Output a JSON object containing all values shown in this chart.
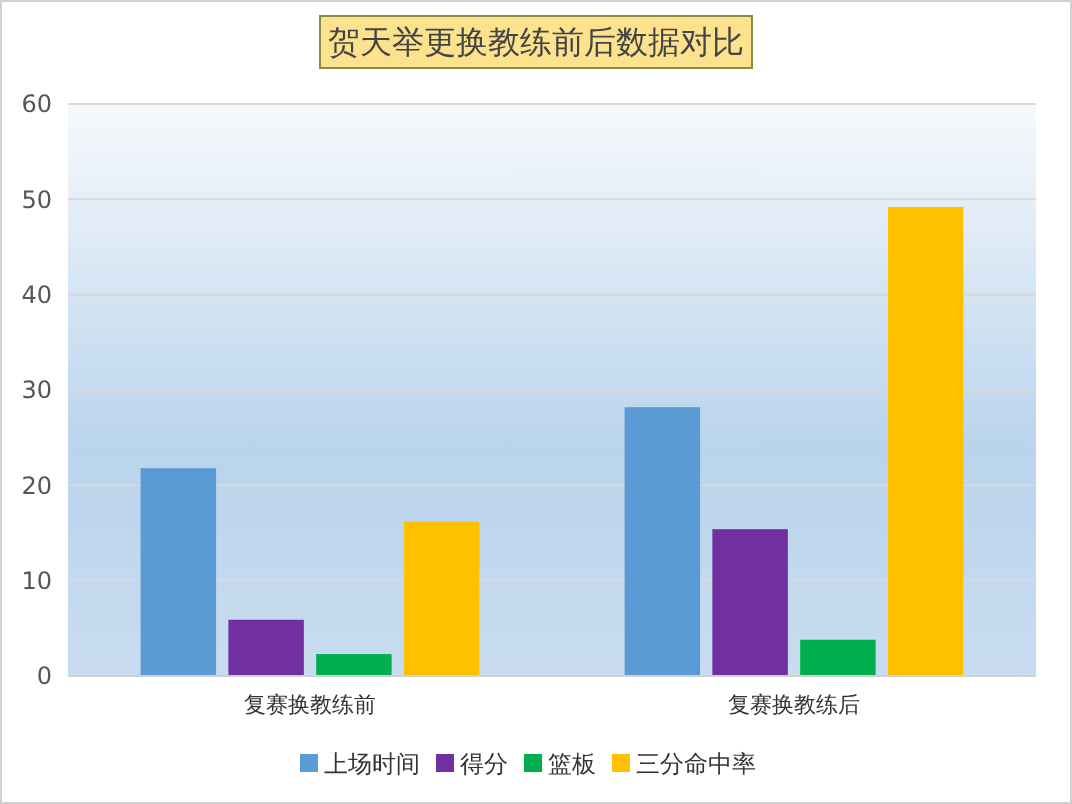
{
  "chart_data": {
    "type": "bar",
    "title": "贺天举更换教练前后数据对比",
    "categories": [
      "复赛换教练前",
      "复赛换教练后"
    ],
    "series": [
      {
        "name": "上场时间",
        "color": "#5b9bd5",
        "values": [
          21.8,
          28.2
        ]
      },
      {
        "name": "得分",
        "color": "#7030a0",
        "values": [
          5.9,
          15.4
        ]
      },
      {
        "name": "篮板",
        "color": "#00b050",
        "values": [
          2.3,
          3.8
        ]
      },
      {
        "name": "三分命中率",
        "color": "#ffc000",
        "values": [
          16.2,
          49.2
        ]
      }
    ],
    "ylim": [
      0,
      60
    ],
    "yticks": [
      0,
      10,
      20,
      30,
      40,
      50,
      60
    ],
    "grid": "y",
    "legend": "bottom"
  }
}
